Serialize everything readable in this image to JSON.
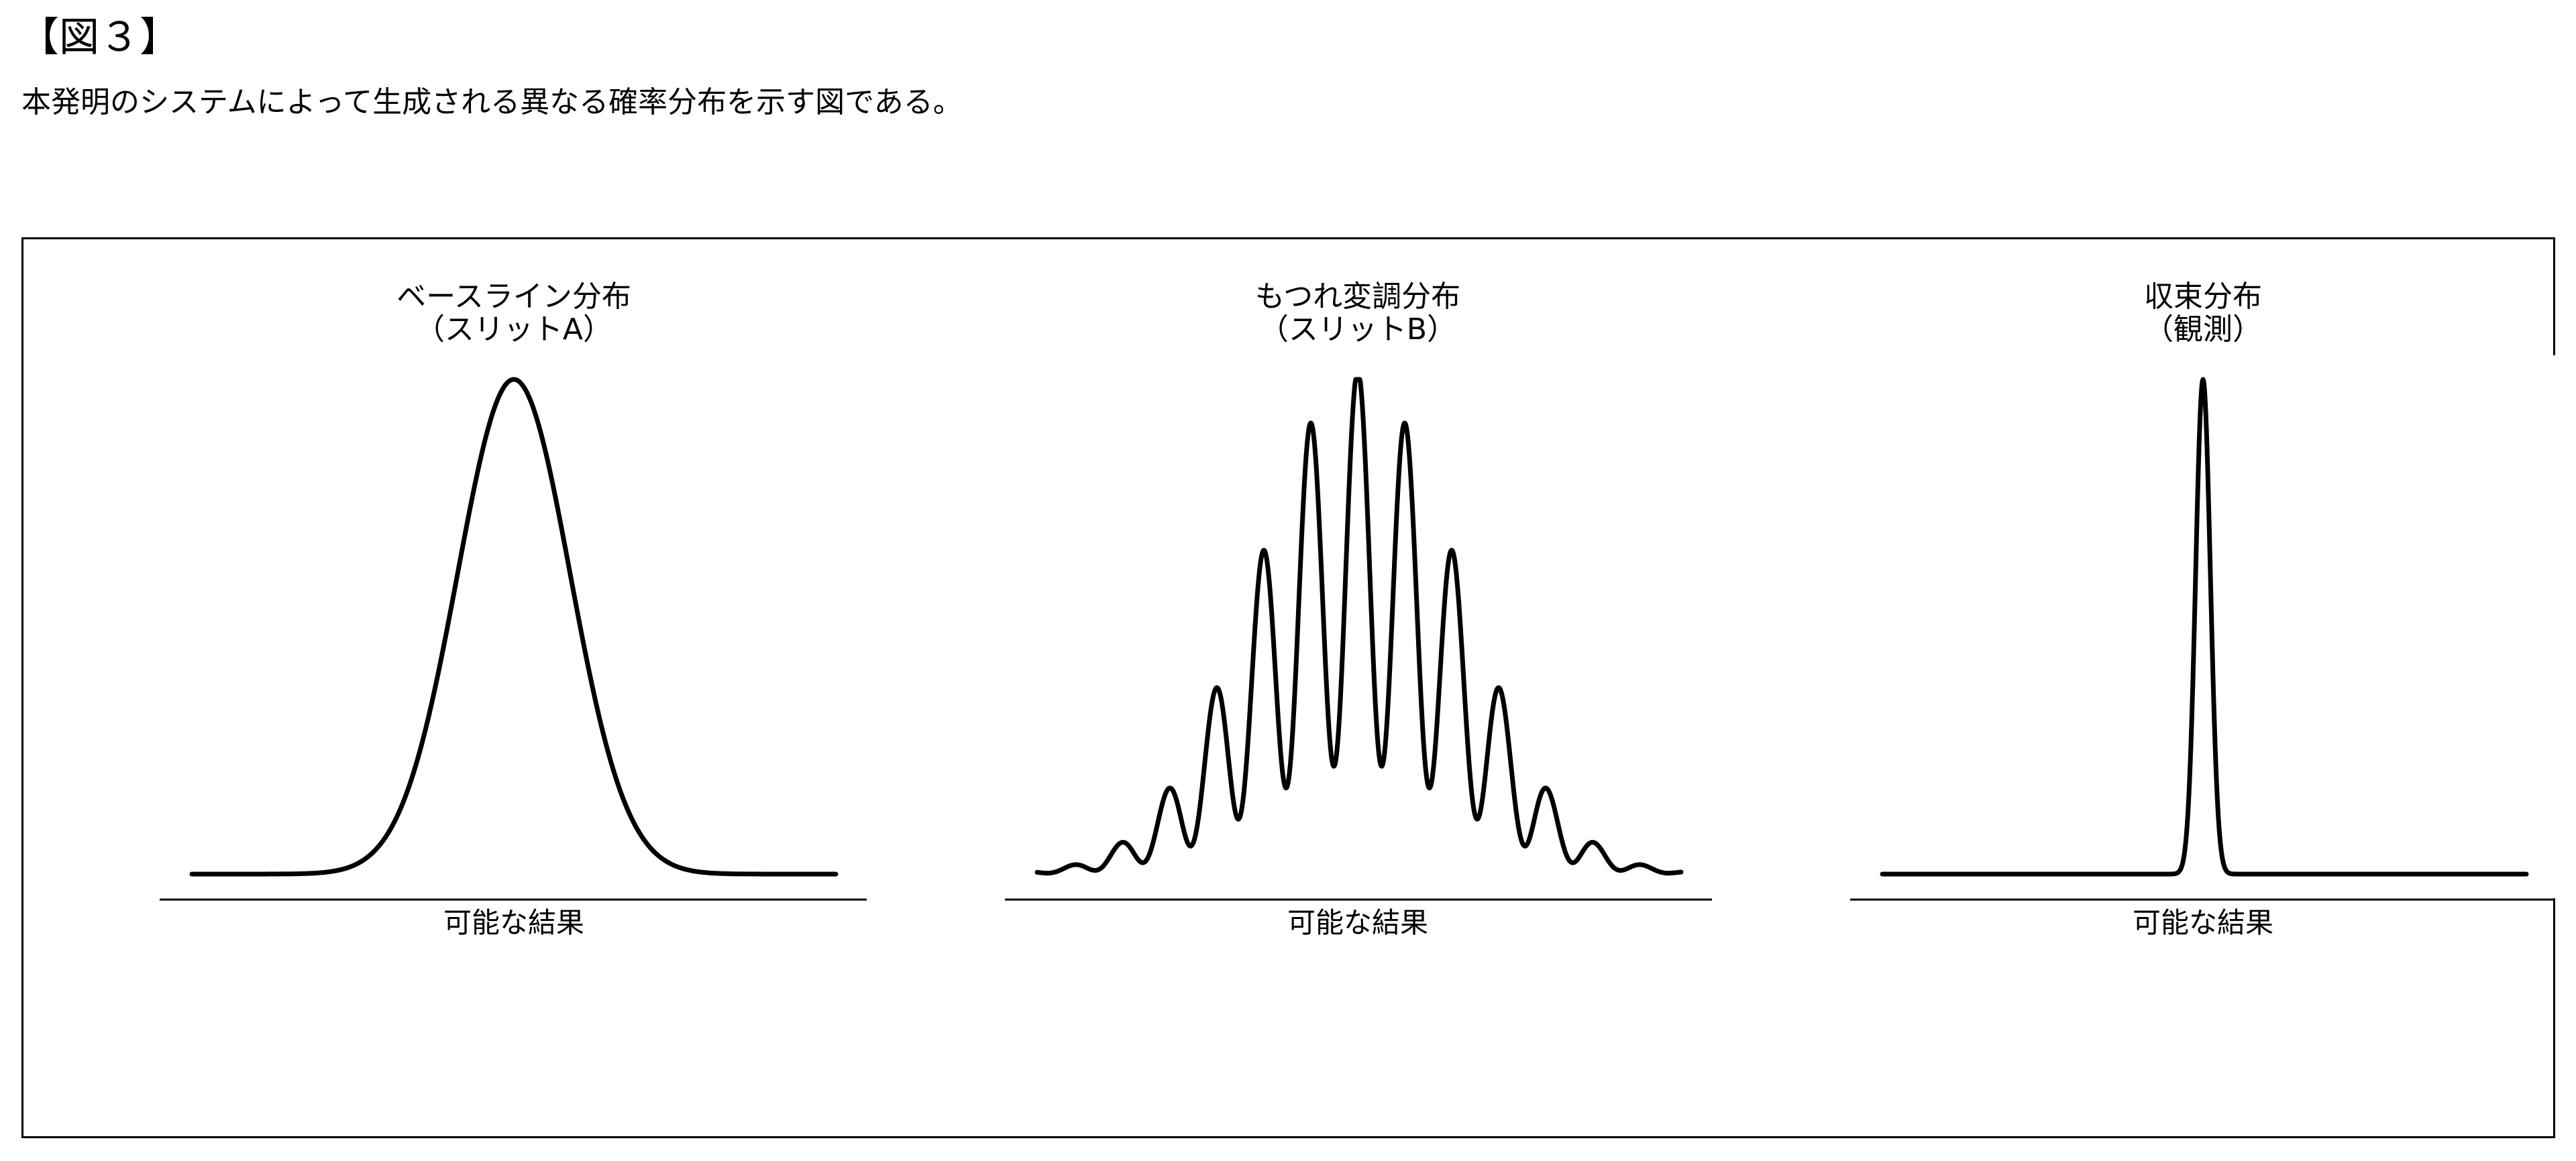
{
  "figure_label": "【図３】",
  "caption": "本発明のシステムによって生成される異なる確率分布を示す図である。",
  "panels": [
    {
      "id": "baseline",
      "title_line1": "ベースライン分布",
      "title_line2": "（スリットA）",
      "axis_label": "可能な結果",
      "shape": "single-gaussian"
    },
    {
      "id": "entangled",
      "title_line1": "もつれ変調分布",
      "title_line2": "（スリットB）",
      "axis_label": "可能な結果",
      "shape": "interference-fringes"
    },
    {
      "id": "collapsed",
      "title_line1": "収束分布",
      "title_line2": "（観測）",
      "axis_label": "可能な結果",
      "shape": "narrow-spike"
    }
  ]
}
